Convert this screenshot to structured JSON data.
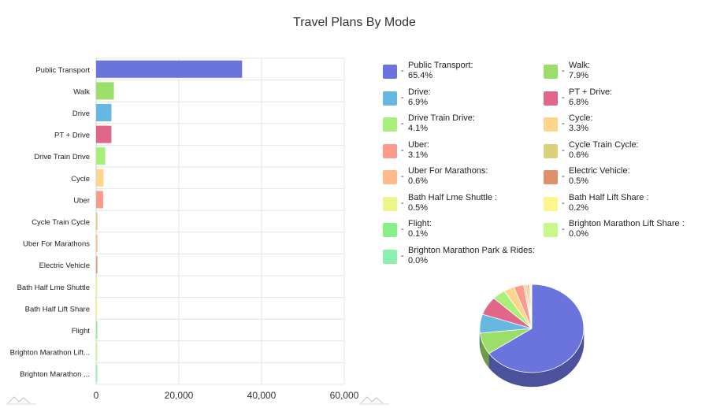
{
  "title": "Travel Plans By Mode",
  "chart_data": [
    {
      "type": "bar",
      "orientation": "horizontal",
      "categories": [
        "Public Transport",
        "Walk",
        "Drive",
        "PT + Drive",
        "Drive Train Drive",
        "Cycle",
        "Uber",
        "Cycle Train Cycle",
        "Uber For Marathons",
        "Electric Vehicle",
        "Bath Half Lme Shuttle",
        "Bath Half Lift Share",
        "Flight",
        "Brighton Marathon Lift...",
        "Brighton Marathon ..."
      ],
      "values": [
        35300,
        4300,
        3700,
        3700,
        2200,
        1800,
        1700,
        320,
        320,
        270,
        270,
        110,
        55,
        5,
        5
      ],
      "colors": [
        "#6b73dd",
        "#9bde6a",
        "#66b8e0",
        "#e0668a",
        "#a8f07a",
        "#fdd68c",
        "#fd9a8c",
        "#ddd07a",
        "#fdbb8c",
        "#e0906a",
        "#eef68a",
        "#fdf68c",
        "#88f088",
        "#c8f88a",
        "#8cf0b0"
      ],
      "xticks": [
        "0",
        "20,000",
        "40,000",
        "60,000"
      ],
      "xlim": [
        0,
        60000
      ],
      "grid": true
    },
    {
      "type": "pie",
      "style": "3d",
      "labels": [
        "Public Transport:",
        "Walk:",
        "Drive:",
        "PT + Drive:",
        "Drive Train Drive:",
        "Cycle:",
        "Uber:",
        "Cycle Train Cycle:",
        "Uber For Marathons:",
        "Electric Vehicle:",
        "Bath Half Lme Shuttle :",
        "Bath Half Lift Share :",
        "Flight:",
        "Brighton Marathon Lift Share :",
        "Brighton Marathon Park & Rides:"
      ],
      "percents": [
        "65.4%",
        "7.9%",
        "6.9%",
        "6.8%",
        "4.1%",
        "3.3%",
        "3.1%",
        "0.6%",
        "0.6%",
        "0.5%",
        "0.5%",
        "0.2%",
        "0.1%",
        "0.0%",
        "0.0%"
      ],
      "values": [
        65.4,
        7.9,
        6.9,
        6.8,
        4.1,
        3.3,
        3.1,
        0.6,
        0.6,
        0.5,
        0.5,
        0.2,
        0.1,
        0.0,
        0.0
      ],
      "colors": [
        "#6b73dd",
        "#9bde6a",
        "#66b8e0",
        "#e0668a",
        "#a8f07a",
        "#fdd68c",
        "#fd9a8c",
        "#ddd07a",
        "#fdbb8c",
        "#e0906a",
        "#eef68a",
        "#fdf68c",
        "#88f088",
        "#c8f88a",
        "#8cf0b0"
      ],
      "legend_position": "top"
    }
  ],
  "legend": {
    "separator": "-"
  }
}
